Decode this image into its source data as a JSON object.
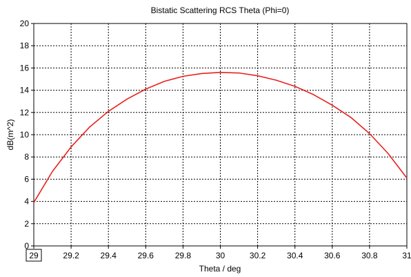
{
  "chart_data": {
    "type": "line",
    "title": "Bistatic Scattering RCS Theta (Phi=0)",
    "xlabel": "Theta / deg",
    "ylabel": "dB(m^2)",
    "xlim": [
      29,
      31
    ],
    "ylim": [
      0,
      20
    ],
    "x_ticks": [
      "29",
      "29.2",
      "29.4",
      "29.6",
      "29.8",
      "30",
      "30.2",
      "30.4",
      "30.6",
      "30.8",
      "31"
    ],
    "y_ticks": [
      "0",
      "2",
      "4",
      "6",
      "8",
      "10",
      "12",
      "14",
      "16",
      "18",
      "20"
    ],
    "grid": true,
    "highlighted_tick": "29",
    "series": [
      {
        "color": "#e8201e",
        "x": [
          29.0,
          29.1,
          29.2,
          29.3,
          29.4,
          29.5,
          29.6,
          29.7,
          29.8,
          29.9,
          30.0,
          30.1,
          30.2,
          30.3,
          30.4,
          30.5,
          30.6,
          30.7,
          30.8,
          30.9,
          31.0
        ],
        "y": [
          3.9,
          6.7,
          8.9,
          10.7,
          12.1,
          13.2,
          14.1,
          14.8,
          15.25,
          15.5,
          15.6,
          15.55,
          15.3,
          14.9,
          14.35,
          13.6,
          12.65,
          11.55,
          10.1,
          8.3,
          6.1
        ]
      }
    ]
  }
}
